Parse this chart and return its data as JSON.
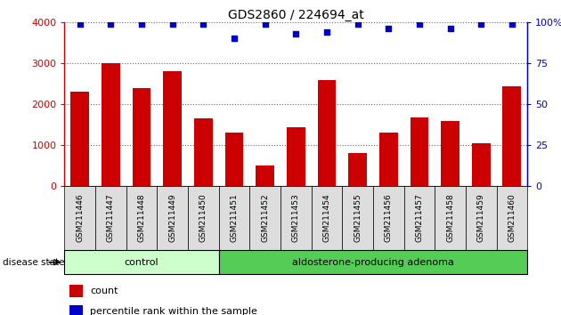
{
  "title": "GDS2860 / 224694_at",
  "categories": [
    "GSM211446",
    "GSM211447",
    "GSM211448",
    "GSM211449",
    "GSM211450",
    "GSM211451",
    "GSM211452",
    "GSM211453",
    "GSM211454",
    "GSM211455",
    "GSM211456",
    "GSM211457",
    "GSM211458",
    "GSM211459",
    "GSM211460"
  ],
  "counts": [
    2300,
    3000,
    2380,
    2800,
    1650,
    1290,
    490,
    1430,
    2590,
    810,
    1290,
    1660,
    1580,
    1040,
    2430
  ],
  "percentiles": [
    99,
    99,
    99,
    99,
    99,
    90,
    99,
    93,
    94,
    99,
    96,
    99,
    96,
    99,
    99
  ],
  "bar_color": "#cc0000",
  "dot_color": "#0000cc",
  "control_count": 5,
  "control_label": "control",
  "adenoma_label": "aldosterone-producing adenoma",
  "control_bg": "#ccffcc",
  "adenoma_bg": "#55cc55",
  "ylim_left": [
    0,
    4000
  ],
  "ylim_right": [
    0,
    100
  ],
  "yticks_left": [
    0,
    1000,
    2000,
    3000,
    4000
  ],
  "ytick_labels_left": [
    "0",
    "1000",
    "2000",
    "3000",
    "4000"
  ],
  "yticks_right": [
    0,
    25,
    50,
    75,
    100
  ],
  "ytick_labels_right": [
    "0",
    "25",
    "50",
    "75",
    "100%"
  ],
  "legend_count_label": "count",
  "legend_pct_label": "percentile rank within the sample",
  "disease_state_label": "disease state"
}
